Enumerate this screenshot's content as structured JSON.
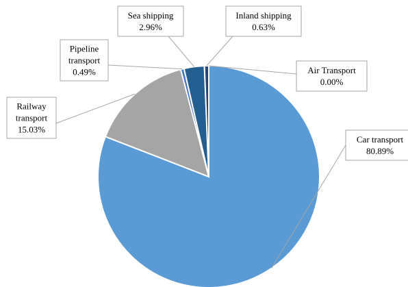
{
  "chart_data": {
    "type": "pie",
    "categories": [
      "Car transport",
      "Railway transport",
      "Pipeline transport",
      "Sea shipping",
      "Inland shipping",
      "Air Transport"
    ],
    "values": [
      80.89,
      15.03,
      0.49,
      2.96,
      0.63,
      0.0
    ],
    "labels": [
      {
        "lines": [
          "Car transport",
          "80.89%"
        ]
      },
      {
        "lines": [
          "Railway",
          "transport",
          "15.03%"
        ]
      },
      {
        "lines": [
          "Pipeline",
          "transport",
          "0.49%"
        ]
      },
      {
        "lines": [
          "Sea shipping",
          "2.96%"
        ]
      },
      {
        "lines": [
          "Inland shipping",
          "0.63%"
        ]
      },
      {
        "lines": [
          "Air Transport",
          "0.00%"
        ]
      }
    ],
    "colors": [
      "#5b9bd5",
      "#a5a5a5",
      "#4472c4",
      "#255e91",
      "#264478",
      "#636363"
    ],
    "start_angle_deg": 0,
    "direction": "clockwise",
    "legend": "none"
  }
}
